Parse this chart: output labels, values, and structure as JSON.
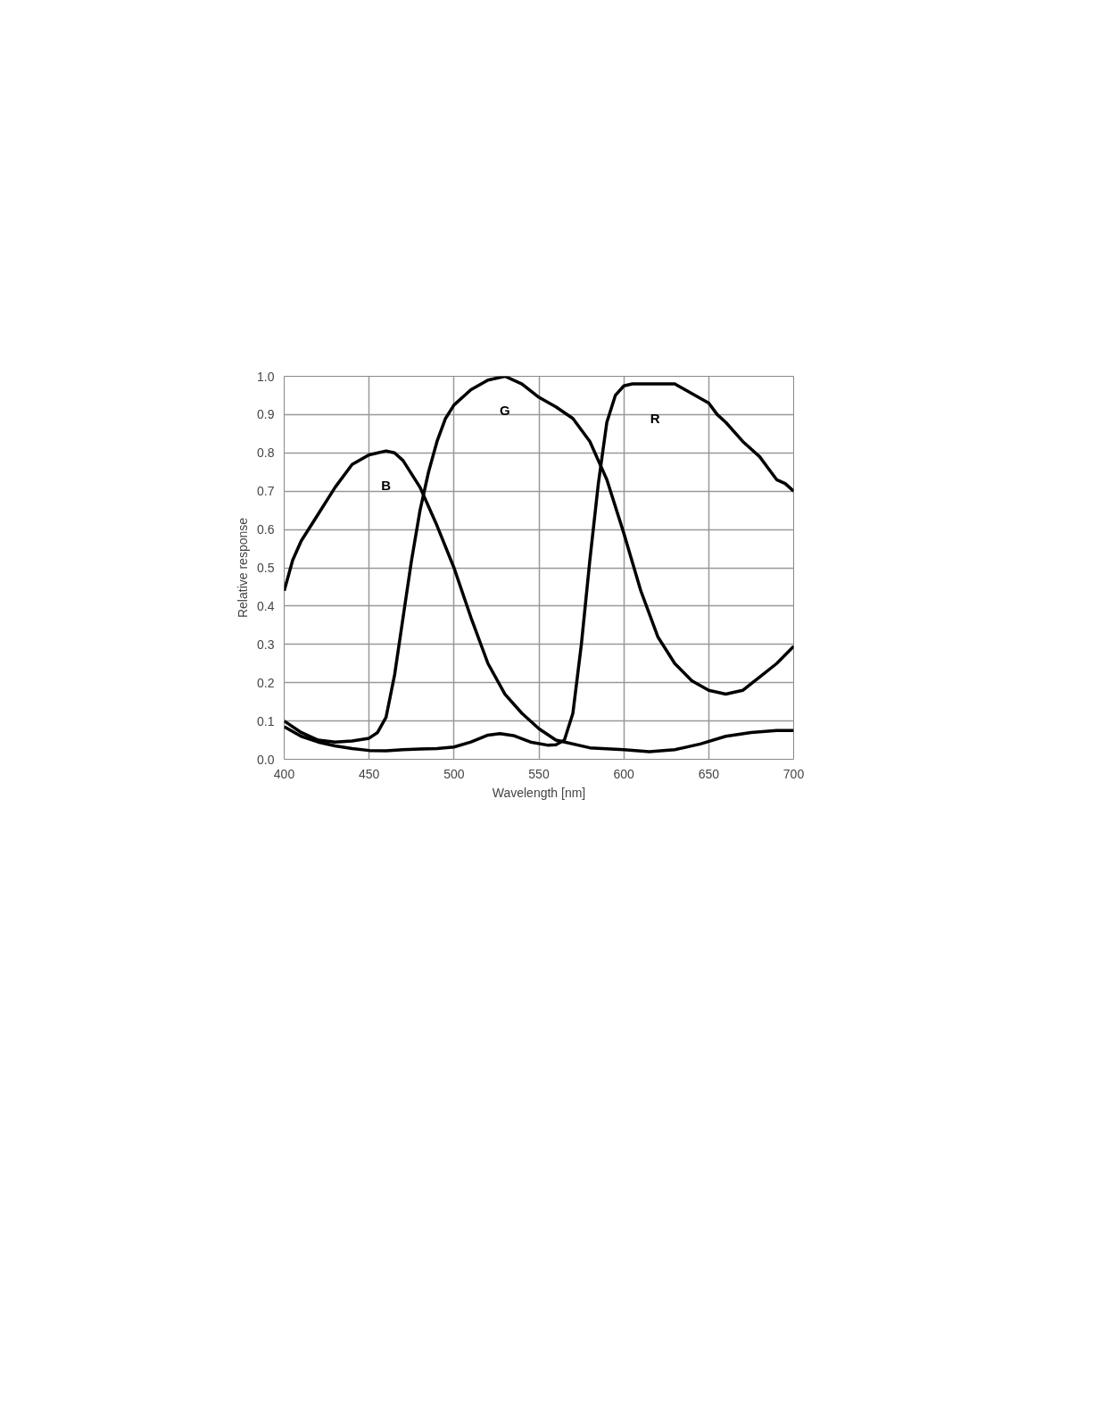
{
  "chart_data": {
    "type": "line",
    "xlabel": "Wavelength [nm]",
    "ylabel": "Relative response",
    "xlim": [
      400,
      700
    ],
    "xticks": [
      400,
      450,
      500,
      550,
      600,
      650,
      700
    ],
    "ylim": [
      0,
      1
    ],
    "yticks": [
      {
        "value": 0,
        "label": "0.0"
      },
      {
        "value": 0.1,
        "label": "0.1"
      },
      {
        "value": 0.2,
        "label": "0.2"
      },
      {
        "value": 0.3,
        "label": "0.3"
      },
      {
        "value": 0.4,
        "label": "0.4"
      },
      {
        "value": 0.5,
        "label": "0.5"
      },
      {
        "value": 0.6,
        "label": "0.6"
      },
      {
        "value": 0.7,
        "label": "0.7"
      },
      {
        "value": 0.8,
        "label": "0.8"
      },
      {
        "value": 0.9,
        "label": "0.9"
      },
      {
        "value": 1,
        "label": "1.0"
      }
    ],
    "grid": true,
    "line_style": "solid",
    "marker": "none",
    "series": [
      {
        "name": "B",
        "color": "#000000",
        "x": [
          400,
          405,
          410,
          420,
          430,
          440,
          450,
          460,
          465,
          470,
          480,
          490,
          500,
          510,
          520,
          530,
          540,
          550,
          560,
          580,
          600,
          615,
          630,
          645,
          660,
          675,
          690,
          700
        ],
        "values": [
          0.44,
          0.52,
          0.57,
          0.64,
          0.71,
          0.77,
          0.795,
          0.805,
          0.8,
          0.78,
          0.71,
          0.61,
          0.5,
          0.37,
          0.25,
          0.17,
          0.12,
          0.08,
          0.05,
          0.03,
          0.025,
          0.02,
          0.025,
          0.04,
          0.06,
          0.07,
          0.075,
          0.075
        ]
      },
      {
        "name": "G",
        "color": "#000000",
        "x": [
          400,
          410,
          420,
          430,
          440,
          450,
          455,
          460,
          465,
          470,
          475,
          480,
          485,
          490,
          495,
          500,
          510,
          520,
          530,
          540,
          550,
          560,
          570,
          580,
          590,
          600,
          610,
          620,
          630,
          640,
          650,
          660,
          670,
          680,
          690,
          700
        ],
        "values": [
          0.1,
          0.07,
          0.05,
          0.045,
          0.048,
          0.055,
          0.07,
          0.11,
          0.22,
          0.37,
          0.52,
          0.65,
          0.75,
          0.83,
          0.89,
          0.925,
          0.965,
          0.99,
          1.0,
          0.98,
          0.945,
          0.92,
          0.89,
          0.83,
          0.73,
          0.59,
          0.44,
          0.32,
          0.25,
          0.205,
          0.18,
          0.17,
          0.18,
          0.215,
          0.25,
          0.295
        ]
      },
      {
        "name": "R",
        "color": "#000000",
        "x": [
          400,
          410,
          420,
          430,
          440,
          450,
          460,
          470,
          480,
          490,
          500,
          510,
          520,
          527,
          535,
          545,
          555,
          560,
          565,
          570,
          575,
          580,
          585,
          590,
          595,
          600,
          605,
          620,
          630,
          640,
          650,
          655,
          660,
          670,
          680,
          685,
          690,
          695,
          700
        ],
        "values": [
          0.085,
          0.06,
          0.045,
          0.035,
          0.028,
          0.023,
          0.022,
          0.025,
          0.027,
          0.028,
          0.032,
          0.045,
          0.063,
          0.067,
          0.062,
          0.045,
          0.037,
          0.038,
          0.05,
          0.12,
          0.3,
          0.52,
          0.72,
          0.88,
          0.95,
          0.975,
          0.98,
          0.98,
          0.98,
          0.955,
          0.93,
          0.9,
          0.88,
          0.83,
          0.79,
          0.76,
          0.73,
          0.72,
          0.7
        ]
      }
    ]
  }
}
